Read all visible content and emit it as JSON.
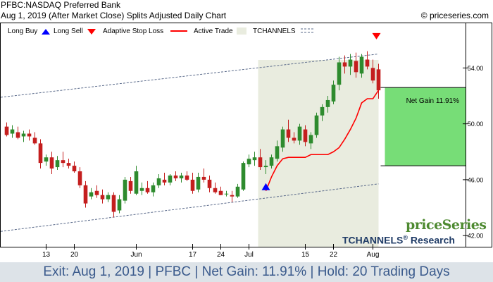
{
  "header": {
    "line1": "PFBC:NASDAQ Preferred Bank",
    "line2": "Aug 1, 2019 (After Market Close)  Splits Adjusted Daily Chart",
    "copyright": "© priceseries.com"
  },
  "legend": {
    "long_buy": "Long Buy",
    "long_sell": "Long Sell",
    "stop_loss": "Adaptive Stop Loss",
    "active_trade": "Active Trade",
    "tchannels": "TCHANNELS"
  },
  "brand": {
    "name": "priceSeries",
    "tchannels": "TCHANNELS",
    "research": " Research",
    "reg": "®"
  },
  "footer": {
    "text": "Exit: Aug 1, 2019 | PFBC | Net Gain: 11.91% | Hold: 20 Trading Days"
  },
  "colors": {
    "up": "#2e8b2e",
    "down": "#c41e1e",
    "stop": "#ff0000",
    "active_bg": "#e9ecdf",
    "gain_box": "#77dd77",
    "channel": "#5a6a8a",
    "buy_arrow": "#0000ff",
    "sell_arrow": "#ff0000"
  },
  "chart_data": {
    "type": "candlestick",
    "ylim": [
      41.2,
      57.2
    ],
    "y_ticks": [
      42.0,
      46.0,
      50.0,
      54.0
    ],
    "y_tick_labels": [
      "42.00",
      "46.00",
      "50.00",
      "54.00"
    ],
    "x_ticks": [
      {
        "index": 7,
        "label": "13"
      },
      {
        "index": 12,
        "label": "20"
      },
      {
        "index": 23,
        "label": "Jun"
      },
      {
        "index": 33,
        "label": "17"
      },
      {
        "index": 38,
        "label": "24"
      },
      {
        "index": 43,
        "label": "Jul"
      },
      {
        "index": 53,
        "label": "15"
      },
      {
        "index": 58,
        "label": "22"
      },
      {
        "index": 65,
        "label": "Aug"
      }
    ],
    "candles": [
      [
        49.8,
        50.1,
        49.1,
        49.2
      ],
      [
        49.3,
        49.9,
        49.0,
        49.6
      ],
      [
        49.4,
        49.8,
        48.9,
        49.0
      ],
      [
        49.1,
        49.5,
        48.7,
        49.3
      ],
      [
        49.3,
        49.6,
        48.8,
        49.1
      ],
      [
        49.0,
        49.4,
        48.5,
        48.6
      ],
      [
        48.6,
        48.9,
        46.8,
        47.2
      ],
      [
        47.3,
        47.8,
        47.0,
        47.6
      ],
      [
        47.6,
        48.0,
        46.4,
        46.8
      ],
      [
        46.9,
        47.7,
        46.7,
        47.4
      ],
      [
        47.4,
        48.0,
        46.9,
        47.2
      ],
      [
        47.2,
        47.5,
        46.8,
        47.0
      ],
      [
        47.0,
        47.3,
        46.5,
        46.6
      ],
      [
        46.6,
        46.9,
        45.4,
        45.6
      ],
      [
        45.6,
        45.9,
        44.0,
        44.3
      ],
      [
        44.8,
        45.4,
        44.6,
        45.1
      ],
      [
        45.2,
        45.6,
        44.7,
        44.9
      ],
      [
        44.9,
        45.3,
        44.3,
        44.6
      ],
      [
        44.6,
        45.1,
        44.4,
        44.9
      ],
      [
        44.9,
        45.1,
        43.3,
        43.7
      ],
      [
        43.8,
        44.9,
        43.6,
        44.6
      ],
      [
        44.5,
        46.2,
        44.3,
        46.0
      ],
      [
        45.9,
        46.2,
        45.0,
        45.2
      ],
      [
        45.0,
        47.0,
        44.9,
        46.6
      ],
      [
        45.2,
        45.8,
        44.9,
        45.4
      ],
      [
        45.4,
        45.9,
        45.0,
        45.1
      ],
      [
        45.1,
        45.8,
        44.8,
        45.6
      ],
      [
        45.6,
        46.4,
        45.4,
        46.1
      ],
      [
        46.0,
        46.5,
        45.6,
        45.8
      ],
      [
        45.8,
        46.4,
        45.6,
        46.3
      ],
      [
        46.3,
        46.6,
        45.9,
        46.1
      ],
      [
        46.1,
        46.5,
        45.8,
        46.3
      ],
      [
        46.3,
        46.6,
        45.9,
        46.0
      ],
      [
        46.0,
        46.5,
        45.0,
        45.2
      ],
      [
        45.3,
        46.5,
        45.1,
        46.2
      ],
      [
        46.2,
        46.8,
        45.8,
        46.0
      ],
      [
        46.0,
        46.3,
        45.1,
        45.4
      ],
      [
        45.4,
        45.8,
        45.0,
        45.1
      ],
      [
        45.2,
        45.5,
        44.9,
        44.9
      ],
      [
        45.0,
        45.2,
        44.8,
        45.0
      ],
      [
        44.9,
        45.2,
        44.4,
        44.8
      ],
      [
        44.8,
        45.7,
        44.7,
        45.5
      ],
      [
        45.3,
        47.3,
        45.2,
        47.2
      ],
      [
        47.1,
        47.8,
        46.9,
        47.5
      ],
      [
        47.4,
        48.0,
        47.0,
        47.6
      ],
      [
        47.6,
        48.2,
        46.7,
        46.9
      ],
      [
        46.9,
        47.4,
        46.4,
        47.0
      ],
      [
        47.0,
        47.8,
        46.8,
        47.6
      ],
      [
        47.5,
        48.8,
        47.3,
        48.4
      ],
      [
        48.3,
        49.8,
        48.0,
        49.6
      ],
      [
        49.6,
        50.3,
        48.7,
        49.0
      ],
      [
        49.0,
        49.4,
        48.6,
        48.8
      ],
      [
        48.8,
        50.0,
        48.5,
        49.8
      ],
      [
        49.6,
        49.9,
        48.4,
        48.7
      ],
      [
        48.6,
        49.4,
        48.2,
        49.2
      ],
      [
        49.2,
        50.8,
        49.0,
        50.6
      ],
      [
        50.6,
        51.4,
        50.2,
        51.2
      ],
      [
        51.2,
        52.0,
        50.8,
        51.7
      ],
      [
        51.6,
        53.1,
        51.4,
        52.8
      ],
      [
        52.8,
        54.8,
        52.4,
        54.4
      ],
      [
        54.4,
        54.9,
        53.6,
        54.1
      ],
      [
        54.1,
        55.0,
        53.5,
        54.6
      ],
      [
        54.5,
        55.1,
        53.3,
        53.7
      ],
      [
        53.6,
        55.0,
        53.3,
        54.8
      ],
      [
        54.6,
        55.2,
        53.9,
        54.1
      ],
      [
        54.0,
        54.6,
        52.9,
        53.1
      ],
      [
        53.9,
        54.3,
        51.8,
        52.4
      ]
    ],
    "stop_loss": {
      "start_index": 46,
      "values": [
        45.2,
        46.2,
        47.0,
        47.5,
        47.6,
        47.6,
        47.6,
        47.6,
        47.8,
        47.8,
        47.8,
        47.8,
        48.0,
        48.3,
        48.9,
        49.6,
        50.4,
        51.5,
        51.8,
        51.8,
        52.4
      ]
    },
    "channel_upper": {
      "start": [
        0,
        51.9
      ],
      "end": [
        66,
        55.0
      ]
    },
    "channel_lower": {
      "start": [
        0,
        42.3
      ],
      "end": [
        66,
        45.7
      ]
    },
    "active_trade": {
      "start_index": 45,
      "end_index": 66
    },
    "buy_signal": {
      "index": 46,
      "price": 45.5
    },
    "sell_signal": {
      "index": 66,
      "price": 56.3
    },
    "net_gain": {
      "label": "Net Gain 11.91%",
      "entry": 47.0,
      "exit": 52.6
    }
  }
}
